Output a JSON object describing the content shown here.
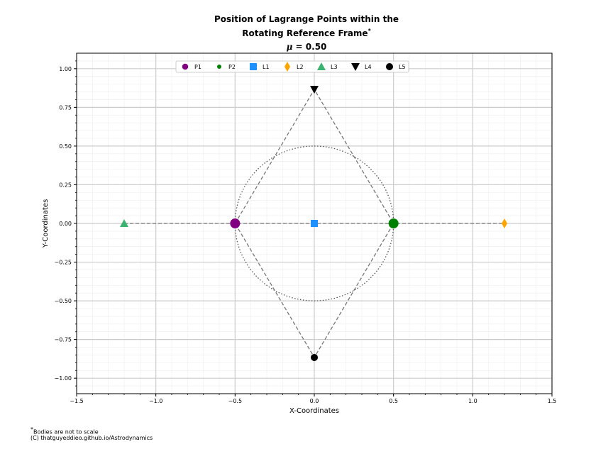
{
  "title": {
    "line1": "Position of Lagrange Points within the",
    "line2": "Rotating Reference Frame",
    "line2_mark": "*",
    "mu_symbol": "μ",
    "line3": " = 0.50"
  },
  "footnote": {
    "line1_mark": "*",
    "line1": "Bodies are not to scale",
    "line2": "(C) thatguyeddieo.github.io/Astrodynamics"
  },
  "chart_data": {
    "type": "scatter",
    "xlabel": "X-Coordinates",
    "ylabel": "Y-Coordinates",
    "xlim": [
      -1.5,
      1.5
    ],
    "ylim": [
      -1.1,
      1.1
    ],
    "xticks": [
      -1.5,
      -1.0,
      -0.5,
      0.0,
      0.5,
      1.0,
      1.5
    ],
    "xtick_labels": [
      "−1.5",
      "−1.0",
      "−0.5",
      "0.0",
      "0.5",
      "1.0",
      "1.5"
    ],
    "yticks": [
      1.0,
      0.75,
      0.5,
      0.25,
      0.0,
      -0.25,
      -0.5,
      -0.75,
      -1.0
    ],
    "ytick_labels": [
      "1.00",
      "0.75",
      "0.50",
      "0.25",
      "0.00",
      "−0.25",
      "−0.50",
      "−0.75",
      "−1.00"
    ],
    "grid": true,
    "legend_position": "top-center",
    "mu": 0.5,
    "points": [
      {
        "name": "P1",
        "x": -0.5,
        "y": 0.0,
        "color": "#800080",
        "marker": "circle-large"
      },
      {
        "name": "P2",
        "x": 0.5,
        "y": 0.0,
        "color": "#008000",
        "marker": "circle-large"
      },
      {
        "name": "L1",
        "x": 0.0,
        "y": 0.0,
        "color": "#1e90ff",
        "marker": "square"
      },
      {
        "name": "L2",
        "x": 1.2,
        "y": 0.0,
        "color": "#ffa500",
        "marker": "diamond"
      },
      {
        "name": "L3",
        "x": -1.2,
        "y": 0.0,
        "color": "#3cb371",
        "marker": "triangle-up"
      },
      {
        "name": "L4",
        "x": 0.0,
        "y": 0.866,
        "color": "#000000",
        "marker": "triangle-down"
      },
      {
        "name": "L5",
        "x": 0.0,
        "y": -0.866,
        "color": "#000000",
        "marker": "circle"
      }
    ],
    "dashed_lines": [
      {
        "points": [
          [
            -1.2,
            0.0
          ],
          [
            1.2,
            0.0
          ]
        ]
      },
      {
        "points": [
          [
            -0.5,
            0.0
          ],
          [
            0.0,
            0.866
          ],
          [
            0.5,
            0.0
          ],
          [
            0.0,
            -0.866
          ],
          [
            -0.5,
            0.0
          ]
        ]
      }
    ],
    "orbit_circle": {
      "center": [
        0.0,
        0.0
      ],
      "radius": 0.5
    }
  }
}
